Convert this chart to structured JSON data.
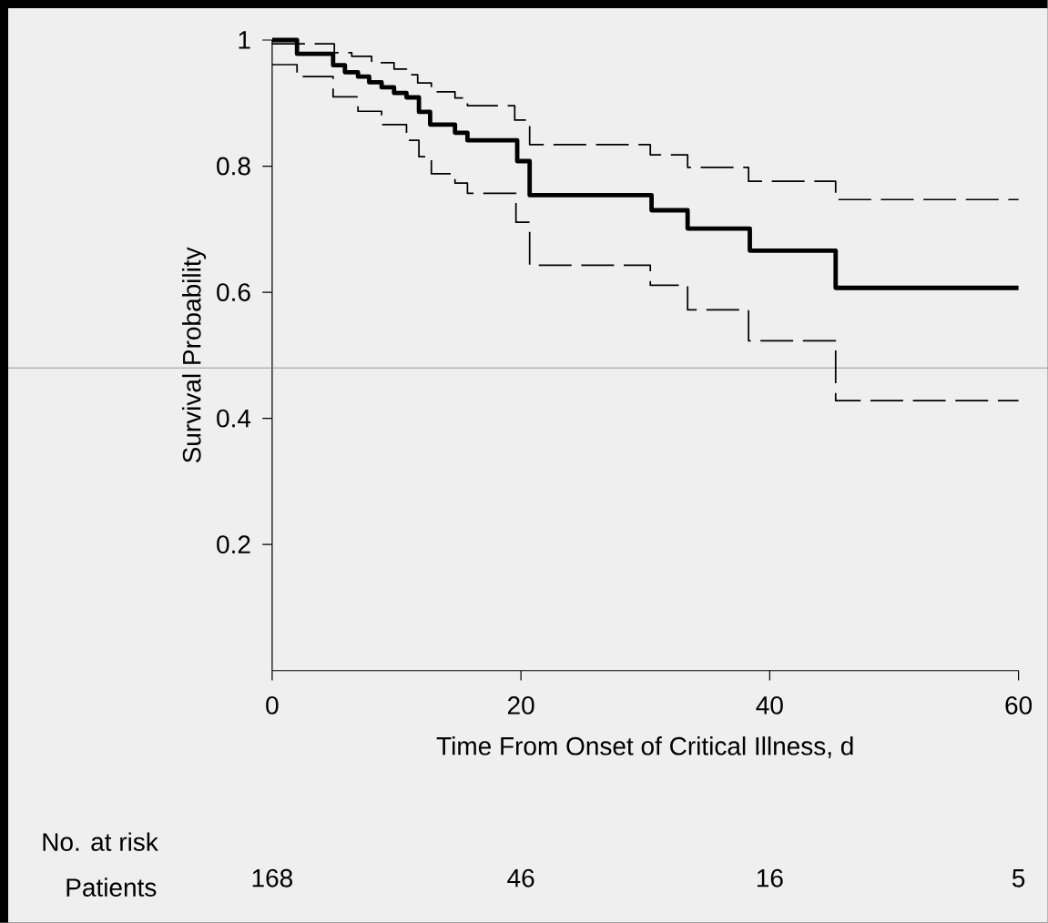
{
  "chart_data": {
    "type": "step",
    "xlabel": "Time From Onset of Critical Illness, d",
    "ylabel": "Survival Probability",
    "xlim": [
      0,
      60
    ],
    "xticks": [
      0,
      20,
      40,
      60
    ],
    "ylim": [
      0,
      1
    ],
    "yticks": [
      0.2,
      0.4,
      0.6,
      0.8,
      1
    ],
    "series": [
      {
        "color": "#000000",
        "line_style": "solid",
        "x": [
          0,
          2.0,
          4.9,
          5.85,
          6.9,
          7.8,
          8.8,
          9.8,
          10.8,
          11.8,
          12.7,
          14.7,
          15.7,
          19.7,
          20.7,
          30.5,
          33.4,
          38.4,
          45.3,
          60
        ],
        "values": [
          1.0,
          0.978,
          0.96,
          0.949,
          0.942,
          0.933,
          0.925,
          0.916,
          0.909,
          0.886,
          0.866,
          0.853,
          0.841,
          0.808,
          0.754,
          0.73,
          0.701,
          0.666,
          0.607,
          0.607
        ]
      },
      {
        "color": "#000000",
        "line_style": "dashed",
        "x": [
          0,
          5.0,
          6.4,
          8.0,
          9.8,
          10.8,
          11.7,
          12.8,
          14.7,
          15.7,
          19.5,
          20.7,
          30.4,
          33.4,
          38.3,
          45.3,
          60
        ],
        "values": [
          0.994,
          0.98,
          0.974,
          0.964,
          0.954,
          0.945,
          0.932,
          0.918,
          0.908,
          0.896,
          0.873,
          0.834,
          0.818,
          0.798,
          0.776,
          0.747,
          0.747
        ]
      },
      {
        "color": "#000000",
        "line_style": "dashed",
        "x": [
          0,
          2.0,
          4.9,
          6.9,
          8.8,
          10.8,
          11.8,
          12.8,
          14.7,
          15.7,
          19.6,
          20.7,
          30.4,
          33.4,
          38.3,
          45.3,
          60
        ],
        "values": [
          0.961,
          0.942,
          0.91,
          0.887,
          0.866,
          0.841,
          0.815,
          0.788,
          0.773,
          0.757,
          0.711,
          0.643,
          0.611,
          0.572,
          0.523,
          0.428,
          0.428
        ]
      }
    ],
    "ref_lines": [
      {
        "axis": "y",
        "value": 0.48,
        "color": "#808080"
      }
    ],
    "annotations": [
      "No. at risk",
      "Patients",
      "168",
      "46",
      "16",
      "5"
    ]
  }
}
